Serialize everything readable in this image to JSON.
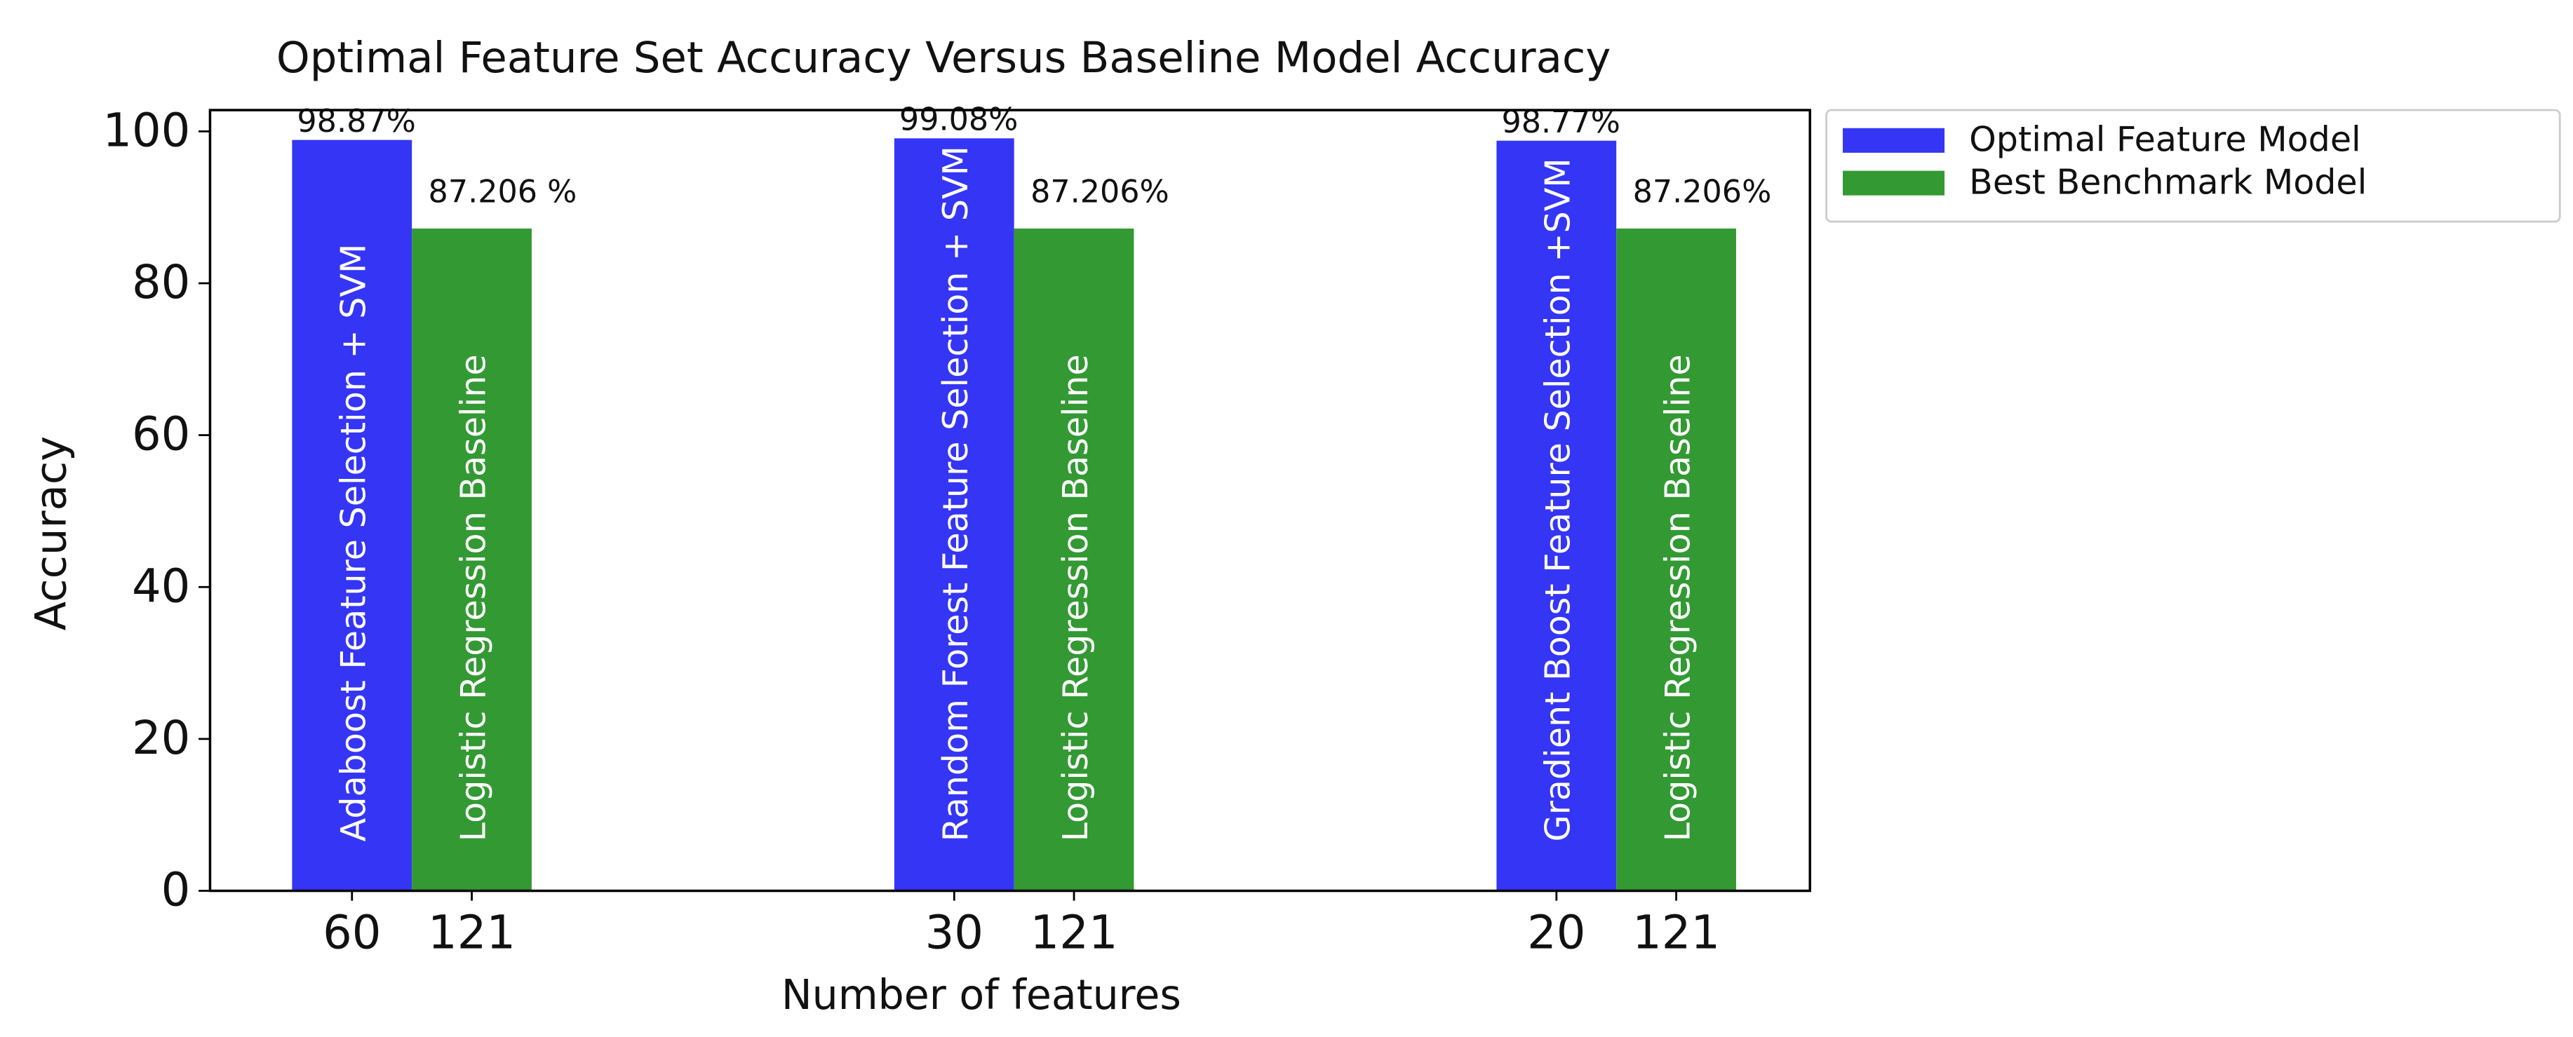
{
  "chart_data": {
    "type": "bar",
    "title": "Optimal Feature Set Accuracy Versus Baseline Model Accuracy",
    "xlabel": "Number of features",
    "ylabel": "Accuracy",
    "ylim": [
      0,
      102.8
    ],
    "yticks": [
      0,
      20,
      40,
      60,
      80,
      100
    ],
    "legend": "outside right",
    "series": [
      {
        "name": "Optimal Feature Model",
        "color": "#3535f5",
        "values": [
          98.87,
          99.08,
          98.77
        ],
        "value_labels": [
          "98.87%",
          "99.08%",
          "98.77%"
        ],
        "bar_labels": [
          "Adaboost Feature Selection + SVM",
          "Random Forest Feature Selection + SVM",
          "Gradient Boost Feature Selection +SVM"
        ],
        "tick_labels": [
          "60",
          "30",
          "20"
        ]
      },
      {
        "name": "Best Benchmark Model",
        "color": "#339933",
        "values": [
          87.206,
          87.206,
          87.206
        ],
        "value_labels": [
          "87.206 %",
          "87.206%",
          "87.206%"
        ],
        "bar_labels": [
          "Logistic Regression Baseline",
          "Logistic Regression Baseline",
          "Logistic Regression Baseline"
        ],
        "tick_labels": [
          "121",
          "121",
          "121"
        ]
      }
    ]
  }
}
